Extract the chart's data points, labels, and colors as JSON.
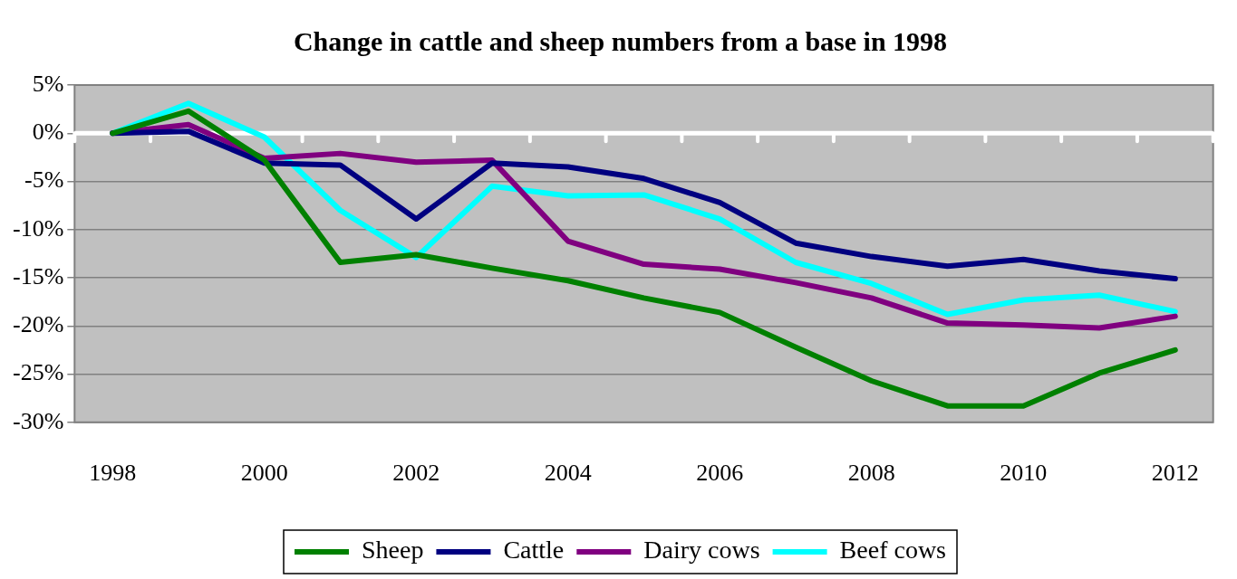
{
  "chart_data": {
    "type": "line",
    "title": "Change in cattle and sheep numbers from a base in 1998",
    "categories": [
      "1998",
      null,
      "2000",
      null,
      "2002",
      null,
      "2004",
      null,
      "2006",
      null,
      "2008",
      null,
      "2010",
      null,
      "2012"
    ],
    "series": [
      {
        "name": "Sheep",
        "color": "#008000",
        "values": [
          0,
          2.3,
          -2.8,
          -13.4,
          -12.6,
          -14.0,
          -15.3,
          -17.1,
          -18.6,
          -22.2,
          -25.7,
          -28.3,
          -28.3,
          -24.9,
          -22.5
        ]
      },
      {
        "name": "Cattle",
        "color": "#000080",
        "values": [
          0,
          0.2,
          -3.1,
          -3.3,
          -8.9,
          -3.1,
          -3.5,
          -4.7,
          -7.2,
          -11.4,
          -12.8,
          -13.8,
          -13.1,
          -14.3,
          -15.1
        ]
      },
      {
        "name": "Dairy cows",
        "color": "#800080",
        "values": [
          0,
          0.9,
          -2.6,
          -2.1,
          -3.0,
          -2.8,
          -11.2,
          -13.6,
          -14.1,
          -15.5,
          -17.1,
          -19.7,
          -19.9,
          -20.2,
          -19.0
        ]
      },
      {
        "name": "Beef cows",
        "color": "#00ffff",
        "values": [
          0,
          3.1,
          -0.4,
          -8.0,
          -12.9,
          -5.5,
          -6.5,
          -6.4,
          -8.9,
          -13.4,
          -15.6,
          -18.8,
          -17.3,
          -16.8,
          -18.5
        ]
      }
    ],
    "ylim": [
      -30,
      5
    ],
    "yticks": [
      {
        "value": 5,
        "label": "5%"
      },
      {
        "value": 0,
        "label": "0%"
      },
      {
        "value": -5,
        "label": "-5%"
      },
      {
        "value": -10,
        "label": "-10%"
      },
      {
        "value": -15,
        "label": "-15%"
      },
      {
        "value": -20,
        "label": "-20%"
      },
      {
        "value": -25,
        "label": "-25%"
      },
      {
        "value": -30,
        "label": "-30%"
      }
    ],
    "ref_lines": [
      {
        "axis": "y",
        "value": 0,
        "color": "#ffffff"
      }
    ],
    "grid": "y",
    "legend": "bottom",
    "marker": "none",
    "line_style": "solid"
  }
}
